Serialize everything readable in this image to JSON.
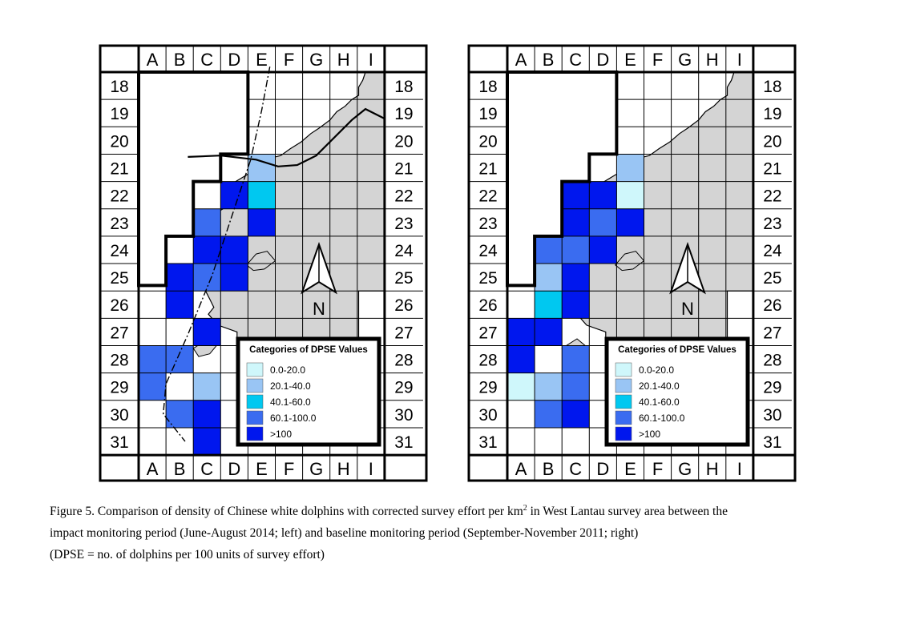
{
  "colors": {
    "land": "#d4d4d4",
    "water": "#ffffff",
    "grid": "#000000",
    "classes": [
      "#cff7fb",
      "#99c5f4",
      "#00c8f0",
      "#3a6cf0",
      "#0017ee"
    ]
  },
  "grid": {
    "columns": [
      "A",
      "B",
      "C",
      "D",
      "E",
      "F",
      "G",
      "H",
      "I"
    ],
    "rows": [
      "18",
      "19",
      "20",
      "21",
      "22",
      "23",
      "24",
      "25",
      "26",
      "27",
      "28",
      "29",
      "30",
      "31"
    ]
  },
  "legend": {
    "title": "Categories of DPSE Values",
    "labels": [
      "0.0-20.0",
      "20.1-40.0",
      "40.1-60.0",
      "60.1-100.0",
      ">100"
    ]
  },
  "north_label": "N",
  "maps": [
    {
      "period": "impact monitoring period (June-August 2014)",
      "position": "left",
      "cells": [
        {
          "col": "D",
          "row": "22",
          "class": 4
        },
        {
          "col": "E",
          "row": "21",
          "class": 1
        },
        {
          "col": "E",
          "row": "22",
          "class": 2
        },
        {
          "col": "C",
          "row": "23",
          "class": 3
        },
        {
          "col": "E",
          "row": "23",
          "class": 4
        },
        {
          "col": "C",
          "row": "24",
          "class": 4
        },
        {
          "col": "D",
          "row": "24",
          "class": 4
        },
        {
          "col": "B",
          "row": "25",
          "class": 4
        },
        {
          "col": "C",
          "row": "25",
          "class": 3
        },
        {
          "col": "D",
          "row": "25",
          "class": 4
        },
        {
          "col": "B",
          "row": "26",
          "class": 4
        },
        {
          "col": "C",
          "row": "27",
          "class": 4
        },
        {
          "col": "A",
          "row": "28",
          "class": 3
        },
        {
          "col": "B",
          "row": "28",
          "class": 3
        },
        {
          "col": "A",
          "row": "29",
          "class": 3
        },
        {
          "col": "C",
          "row": "29",
          "class": 1
        },
        {
          "col": "B",
          "row": "30",
          "class": 3
        },
        {
          "col": "C",
          "row": "30",
          "class": 4
        },
        {
          "col": "C",
          "row": "31",
          "class": 4
        }
      ]
    },
    {
      "period": "baseline monitoring period (September-November 2011)",
      "position": "right",
      "cells": [
        {
          "col": "E",
          "row": "21",
          "class": 1
        },
        {
          "col": "C",
          "row": "22",
          "class": 4
        },
        {
          "col": "D",
          "row": "22",
          "class": 4
        },
        {
          "col": "E",
          "row": "22",
          "class": 0
        },
        {
          "col": "C",
          "row": "23",
          "class": 4
        },
        {
          "col": "D",
          "row": "23",
          "class": 3
        },
        {
          "col": "E",
          "row": "23",
          "class": 4
        },
        {
          "col": "B",
          "row": "24",
          "class": 3
        },
        {
          "col": "C",
          "row": "24",
          "class": 3
        },
        {
          "col": "D",
          "row": "24",
          "class": 4
        },
        {
          "col": "B",
          "row": "25",
          "class": 1
        },
        {
          "col": "C",
          "row": "25",
          "class": 4
        },
        {
          "col": "B",
          "row": "26",
          "class": 2
        },
        {
          "col": "C",
          "row": "26",
          "class": 4
        },
        {
          "col": "A",
          "row": "27",
          "class": 4
        },
        {
          "col": "B",
          "row": "27",
          "class": 4
        },
        {
          "col": "A",
          "row": "28",
          "class": 4
        },
        {
          "col": "C",
          "row": "28",
          "class": 3
        },
        {
          "col": "A",
          "row": "29",
          "class": 0
        },
        {
          "col": "B",
          "row": "29",
          "class": 1
        },
        {
          "col": "C",
          "row": "29",
          "class": 3
        },
        {
          "col": "B",
          "row": "30",
          "class": 3
        },
        {
          "col": "C",
          "row": "30",
          "class": 4
        }
      ]
    }
  ],
  "caption": {
    "line1_pre": "Figure 5.  Comparison of density of Chinese white dolphins with corrected survey effort per km",
    "line1_sup": "2",
    "line1_post": " in West Lantau survey area between the",
    "line2": "impact monitoring period (June-August 2014; left) and baseline monitoring period (September-November 2011; right)",
    "line3": "(DPSE = no. of dolphins per 100 units of survey effort)"
  }
}
